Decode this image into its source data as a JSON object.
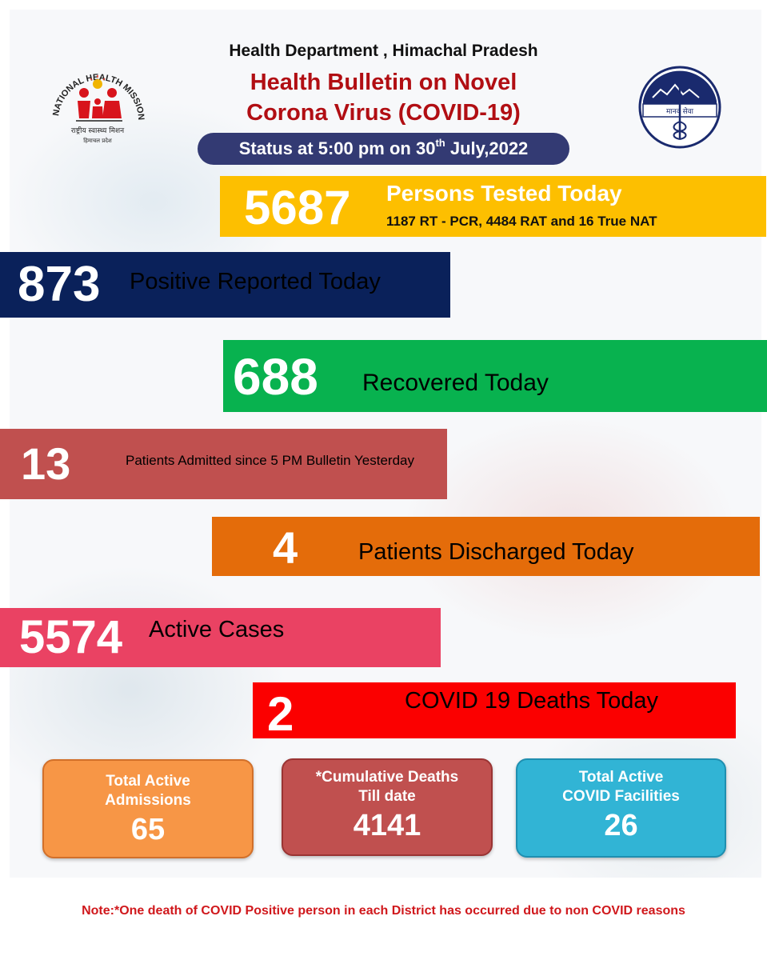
{
  "header": {
    "department": "Health Department , Himachal Pradesh",
    "title_line1": "Health Bulletin on Novel",
    "title_line2": "Corona Virus (COVID-19)",
    "status_prefix": "Status at 5:00 pm on 30",
    "status_sup": "th",
    "status_suffix": " July,2022"
  },
  "logos": {
    "left": {
      "name": "national-health-mission-logo",
      "text": "NATIONAL HEALTH MISSION",
      "hindi1": "राष्ट्रीय स्वास्थ्य मिशन",
      "hindi2": "हिमाचल प्रदेश"
    },
    "right": {
      "name": "health-department-emblem",
      "text": "मानव सेवा"
    }
  },
  "stats": {
    "tested": {
      "value": "5687",
      "label": "Persons Tested Today",
      "detail": "1187 RT - PCR, 4484 RAT and 16 True NAT",
      "color": "#fdbf00"
    },
    "positive": {
      "value": "873",
      "label": "Positive Reported Today",
      "color": "#0a215a"
    },
    "recovered": {
      "value": "688",
      "label": "Recovered Today",
      "color": "#08b24f"
    },
    "admitted": {
      "value": "13",
      "label": "Patients Admitted since 5 PM Bulletin Yesterday",
      "color": "#c0504f"
    },
    "discharged": {
      "value": "4",
      "label": "Patients Discharged Today",
      "color": "#e46c0a"
    },
    "active": {
      "value": "5574",
      "label": "Active Cases",
      "color": "#ea4263"
    },
    "deaths": {
      "value": "2",
      "label": "COVID 19 Deaths Today",
      "color": "#fb0000"
    }
  },
  "boxes": {
    "admissions": {
      "label_line1": "Total Active",
      "label_line2": "Admissions",
      "value": "65",
      "color": "#f79646"
    },
    "cumulative_deaths": {
      "label_line1": "*Cumulative Deaths",
      "label_line2": "Till date",
      "value": "4141",
      "color": "#c0504f"
    },
    "facilities": {
      "label_line1": "Total Active",
      "label_line2": "COVID Facilities",
      "value": "26",
      "color": "#31b4d5"
    }
  },
  "note": "Note:*One death of COVID Positive person in each District has occurred due to non COVID reasons"
}
